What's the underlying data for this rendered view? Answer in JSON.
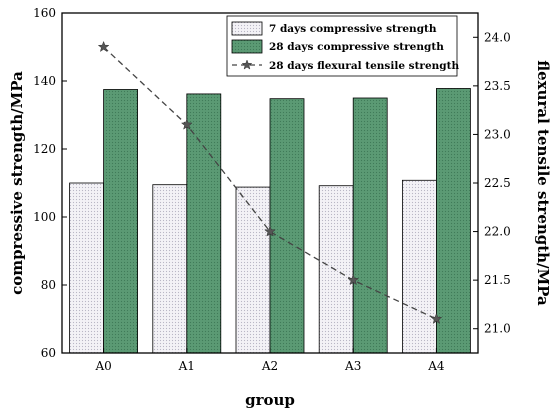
{
  "chart_data": {
    "type": "bar",
    "title": "",
    "xlabel": "group",
    "ylabel": "compressive strength/MPa",
    "y2label": "flexural tensile strength/MPa",
    "categories": [
      "A0",
      "A1",
      "A2",
      "A3",
      "A4"
    ],
    "ylim": [
      60,
      160
    ],
    "y2lim": [
      20.75,
      24.25
    ],
    "yticks": [
      "60",
      "80",
      "100",
      "120",
      "140",
      "160"
    ],
    "y2ticks": [
      "21.0",
      "21.5",
      "22.0",
      "22.5",
      "23.0",
      "23.5",
      "24.0"
    ],
    "legend_position": "top-right",
    "grid": false,
    "series": [
      {
        "name": "7 days compressive strength",
        "type": "bar",
        "axis": "left",
        "color": "#ecebef",
        "values": [
          110,
          109.5,
          108.8,
          109.2,
          110.8
        ]
      },
      {
        "name": "28 days compressive strength",
        "type": "bar",
        "axis": "left",
        "color": "#5b9a74",
        "values": [
          137.5,
          136.2,
          134.8,
          135.0,
          137.8
        ]
      },
      {
        "name": "28 days flexural tensile strength",
        "type": "line",
        "axis": "right",
        "color": "#444444",
        "marker": "star",
        "line_style": "dashed",
        "values": [
          23.9,
          23.1,
          22.0,
          21.5,
          21.1
        ]
      }
    ]
  }
}
